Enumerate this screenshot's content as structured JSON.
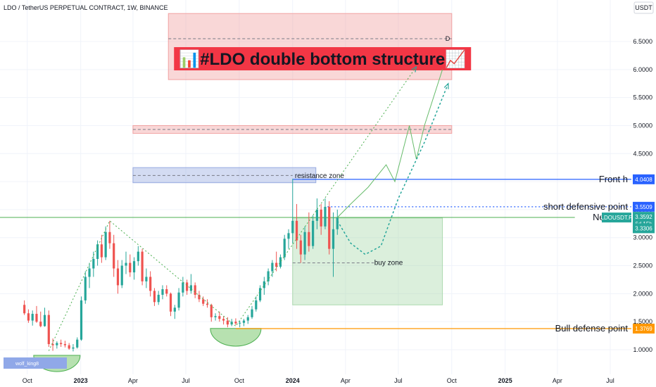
{
  "header": {
    "title": "LDO / TetherUS PERPETUAL CONTRACT, 1W, BINANCE",
    "currency": "USDT",
    "watermark": "wolf_king8"
  },
  "banner": {
    "text": "#LDO double bottom structure",
    "marker": "D",
    "bg_color": "#f23645"
  },
  "chart_data": {
    "type": "candlestick",
    "symbol": "LDOUSDT.P",
    "interval": "1W",
    "y_axis": {
      "ticks": [
        1.0,
        1.5,
        2.0,
        2.5,
        3.0,
        3.5,
        4.0,
        4.5,
        5.0,
        5.5,
        6.0,
        6.5
      ],
      "labels": [
        "1.0000",
        "1.5000",
        "2.0000",
        "2.5000",
        "3.0000",
        "3.5000",
        "4.0000",
        "4.5000",
        "5.0000",
        "5.5000",
        "6.0000",
        "6.5000"
      ],
      "scale": "linear"
    },
    "x_axis": {
      "labels": [
        "Oct",
        "2023",
        "Apr",
        "Jul",
        "Oct",
        "2024",
        "Apr",
        "Jul",
        "Oct",
        "2025",
        "Apr",
        "Jul"
      ],
      "range": [
        "2022-09-01",
        "2025-08-01"
      ]
    },
    "candles": [
      {
        "d": "2022-09-26",
        "o": 1.8,
        "h": 1.88,
        "l": 1.62,
        "c": 1.65
      },
      {
        "d": "2022-10-03",
        "o": 1.65,
        "h": 1.72,
        "l": 1.48,
        "c": 1.52
      },
      {
        "d": "2022-10-10",
        "o": 1.52,
        "h": 1.7,
        "l": 1.43,
        "c": 1.64
      },
      {
        "d": "2022-10-17",
        "o": 1.64,
        "h": 1.78,
        "l": 1.48,
        "c": 1.5
      },
      {
        "d": "2022-10-24",
        "o": 1.5,
        "h": 1.68,
        "l": 1.4,
        "c": 1.42
      },
      {
        "d": "2022-10-31",
        "o": 1.42,
        "h": 1.75,
        "l": 1.41,
        "c": 1.62
      },
      {
        "d": "2022-11-07",
        "o": 1.62,
        "h": 1.7,
        "l": 1.05,
        "c": 1.1
      },
      {
        "d": "2022-11-14",
        "o": 1.1,
        "h": 1.2,
        "l": 0.98,
        "c": 1.08
      },
      {
        "d": "2022-11-21",
        "o": 1.08,
        "h": 1.15,
        "l": 1.02,
        "c": 1.12
      },
      {
        "d": "2022-11-28",
        "o": 1.12,
        "h": 1.18,
        "l": 1.05,
        "c": 1.1
      },
      {
        "d": "2022-12-05",
        "o": 1.1,
        "h": 1.16,
        "l": 1.04,
        "c": 1.08
      },
      {
        "d": "2022-12-12",
        "o": 1.08,
        "h": 1.12,
        "l": 1.0,
        "c": 1.02
      },
      {
        "d": "2022-12-19",
        "o": 1.02,
        "h": 1.1,
        "l": 0.97,
        "c": 1.04
      },
      {
        "d": "2022-12-26",
        "o": 1.04,
        "h": 1.22,
        "l": 1.02,
        "c": 1.18
      },
      {
        "d": "2023-01-02",
        "o": 1.18,
        "h": 1.95,
        "l": 1.16,
        "c": 1.88
      },
      {
        "d": "2023-01-09",
        "o": 1.88,
        "h": 2.4,
        "l": 1.82,
        "c": 2.3
      },
      {
        "d": "2023-01-16",
        "o": 2.3,
        "h": 2.55,
        "l": 2.1,
        "c": 2.45
      },
      {
        "d": "2023-01-23",
        "o": 2.45,
        "h": 2.75,
        "l": 2.3,
        "c": 2.62
      },
      {
        "d": "2023-01-30",
        "o": 2.62,
        "h": 2.95,
        "l": 2.5,
        "c": 2.88
      },
      {
        "d": "2023-02-06",
        "o": 2.88,
        "h": 3.05,
        "l": 2.55,
        "c": 2.65
      },
      {
        "d": "2023-02-13",
        "o": 2.65,
        "h": 3.2,
        "l": 2.6,
        "c": 3.1
      },
      {
        "d": "2023-02-20",
        "o": 3.1,
        "h": 3.3,
        "l": 2.8,
        "c": 2.9
      },
      {
        "d": "2023-02-27",
        "o": 2.9,
        "h": 3.05,
        "l": 2.3,
        "c": 2.45
      },
      {
        "d": "2023-03-06",
        "o": 2.45,
        "h": 2.6,
        "l": 2.0,
        "c": 2.15
      },
      {
        "d": "2023-03-13",
        "o": 2.15,
        "h": 2.6,
        "l": 2.1,
        "c": 2.5
      },
      {
        "d": "2023-03-20",
        "o": 2.5,
        "h": 2.75,
        "l": 2.35,
        "c": 2.55
      },
      {
        "d": "2023-03-27",
        "o": 2.55,
        "h": 2.7,
        "l": 2.3,
        "c": 2.38
      },
      {
        "d": "2023-04-03",
        "o": 2.38,
        "h": 2.65,
        "l": 2.25,
        "c": 2.58
      },
      {
        "d": "2023-04-10",
        "o": 2.58,
        "h": 2.85,
        "l": 2.5,
        "c": 2.75
      },
      {
        "d": "2023-04-17",
        "o": 2.75,
        "h": 2.8,
        "l": 2.15,
        "c": 2.22
      },
      {
        "d": "2023-04-24",
        "o": 2.22,
        "h": 2.45,
        "l": 2.1,
        "c": 2.3
      },
      {
        "d": "2023-05-01",
        "o": 2.3,
        "h": 2.4,
        "l": 1.95,
        "c": 2.05
      },
      {
        "d": "2023-05-08",
        "o": 2.05,
        "h": 2.1,
        "l": 1.78,
        "c": 1.85
      },
      {
        "d": "2023-05-15",
        "o": 1.85,
        "h": 2.05,
        "l": 1.8,
        "c": 1.98
      },
      {
        "d": "2023-05-22",
        "o": 1.98,
        "h": 2.15,
        "l": 1.9,
        "c": 2.08
      },
      {
        "d": "2023-05-29",
        "o": 2.08,
        "h": 2.15,
        "l": 1.95,
        "c": 2.0
      },
      {
        "d": "2023-06-05",
        "o": 2.0,
        "h": 2.02,
        "l": 1.6,
        "c": 1.68
      },
      {
        "d": "2023-06-12",
        "o": 1.68,
        "h": 1.8,
        "l": 1.55,
        "c": 1.75
      },
      {
        "d": "2023-06-19",
        "o": 1.75,
        "h": 2.1,
        "l": 1.7,
        "c": 2.02
      },
      {
        "d": "2023-06-26",
        "o": 2.02,
        "h": 2.3,
        "l": 1.95,
        "c": 2.2
      },
      {
        "d": "2023-07-03",
        "o": 2.2,
        "h": 2.25,
        "l": 1.98,
        "c": 2.05
      },
      {
        "d": "2023-07-10",
        "o": 2.05,
        "h": 2.35,
        "l": 2.0,
        "c": 2.15
      },
      {
        "d": "2023-07-17",
        "o": 2.15,
        "h": 2.2,
        "l": 1.92,
        "c": 1.98
      },
      {
        "d": "2023-07-24",
        "o": 1.98,
        "h": 2.05,
        "l": 1.85,
        "c": 1.9
      },
      {
        "d": "2023-07-31",
        "o": 1.9,
        "h": 1.95,
        "l": 1.78,
        "c": 1.82
      },
      {
        "d": "2023-08-07",
        "o": 1.82,
        "h": 1.9,
        "l": 1.75,
        "c": 1.8
      },
      {
        "d": "2023-08-14",
        "o": 1.8,
        "h": 1.82,
        "l": 1.5,
        "c": 1.58
      },
      {
        "d": "2023-08-21",
        "o": 1.58,
        "h": 1.65,
        "l": 1.52,
        "c": 1.6
      },
      {
        "d": "2023-08-28",
        "o": 1.6,
        "h": 1.68,
        "l": 1.5,
        "c": 1.55
      },
      {
        "d": "2023-09-04",
        "o": 1.55,
        "h": 1.6,
        "l": 1.45,
        "c": 1.52
      },
      {
        "d": "2023-09-11",
        "o": 1.52,
        "h": 1.58,
        "l": 1.4,
        "c": 1.45
      },
      {
        "d": "2023-09-18",
        "o": 1.45,
        "h": 1.55,
        "l": 1.42,
        "c": 1.5
      },
      {
        "d": "2023-09-25",
        "o": 1.5,
        "h": 1.56,
        "l": 1.44,
        "c": 1.47
      },
      {
        "d": "2023-10-02",
        "o": 1.47,
        "h": 1.52,
        "l": 1.4,
        "c": 1.48
      },
      {
        "d": "2023-10-09",
        "o": 1.48,
        "h": 1.55,
        "l": 1.42,
        "c": 1.52
      },
      {
        "d": "2023-10-16",
        "o": 1.52,
        "h": 1.62,
        "l": 1.46,
        "c": 1.58
      },
      {
        "d": "2023-10-23",
        "o": 1.58,
        "h": 1.78,
        "l": 1.55,
        "c": 1.72
      },
      {
        "d": "2023-10-30",
        "o": 1.72,
        "h": 1.95,
        "l": 1.68,
        "c": 1.88
      },
      {
        "d": "2023-11-06",
        "o": 1.88,
        "h": 2.15,
        "l": 1.85,
        "c": 2.1
      },
      {
        "d": "2023-11-13",
        "o": 2.1,
        "h": 2.3,
        "l": 1.98,
        "c": 2.22
      },
      {
        "d": "2023-11-20",
        "o": 2.22,
        "h": 2.45,
        "l": 2.15,
        "c": 2.4
      },
      {
        "d": "2023-11-27",
        "o": 2.4,
        "h": 2.6,
        "l": 2.3,
        "c": 2.55
      },
      {
        "d": "2023-12-04",
        "o": 2.55,
        "h": 2.75,
        "l": 2.4,
        "c": 2.48
      },
      {
        "d": "2023-12-11",
        "o": 2.48,
        "h": 2.7,
        "l": 2.45,
        "c": 2.65
      },
      {
        "d": "2023-12-18",
        "o": 2.65,
        "h": 3.05,
        "l": 2.6,
        "c": 2.98
      },
      {
        "d": "2023-12-25",
        "o": 2.98,
        "h": 3.15,
        "l": 2.8,
        "c": 3.08
      },
      {
        "d": "2024-01-01",
        "o": 3.08,
        "h": 4.05,
        "l": 2.9,
        "c": 3.3
      },
      {
        "d": "2024-01-08",
        "o": 3.3,
        "h": 3.6,
        "l": 2.8,
        "c": 2.95
      },
      {
        "d": "2024-01-15",
        "o": 2.95,
        "h": 3.05,
        "l": 2.55,
        "c": 2.7
      },
      {
        "d": "2024-01-22",
        "o": 2.7,
        "h": 3.2,
        "l": 2.6,
        "c": 3.1
      },
      {
        "d": "2024-01-29",
        "o": 3.1,
        "h": 3.45,
        "l": 2.75,
        "c": 2.85
      },
      {
        "d": "2024-02-05",
        "o": 2.85,
        "h": 3.4,
        "l": 2.8,
        "c": 3.3
      },
      {
        "d": "2024-02-12",
        "o": 3.3,
        "h": 3.7,
        "l": 3.15,
        "c": 3.5
      },
      {
        "d": "2024-02-19",
        "o": 3.5,
        "h": 3.6,
        "l": 3.05,
        "c": 3.2
      },
      {
        "d": "2024-02-26",
        "o": 3.2,
        "h": 3.7,
        "l": 3.15,
        "c": 3.55
      },
      {
        "d": "2024-03-04",
        "o": 3.55,
        "h": 3.65,
        "l": 2.7,
        "c": 2.8
      },
      {
        "d": "2024-03-11",
        "o": 2.8,
        "h": 3.45,
        "l": 2.3,
        "c": 3.15
      },
      {
        "d": "2024-03-18",
        "o": 3.15,
        "h": 3.5,
        "l": 3.05,
        "c": 3.36
      }
    ],
    "horizontal_lines": [
      {
        "label": "Front h",
        "value": 4.0408,
        "badge": "4.0408",
        "color": "#2962ff",
        "style": "solid"
      },
      {
        "label": "short defensive point",
        "value": 3.5509,
        "badge": "3.5509",
        "color": "#2962ff",
        "style": "dotted"
      },
      {
        "label": "Neckline",
        "value": 3.36,
        "badge": "",
        "color": "#4caf50",
        "style": "solid"
      },
      {
        "label": "Bull defense point",
        "value": 1.3769,
        "badge": "1.3769",
        "color": "#ff9800",
        "style": "solid"
      }
    ],
    "price_badges": [
      {
        "text": "LDOUSDT.P",
        "value": 3.3592,
        "color": "#26a69a"
      },
      {
        "text": "3.3592",
        "value": 3.3592,
        "color": "#26a69a"
      },
      {
        "text": "6d 15h",
        "value": 3.3592,
        "color": "#26a69a"
      },
      {
        "text": "3.3306",
        "value": 3.3306,
        "color": "#26a69a"
      }
    ],
    "zones": [
      {
        "label": "",
        "ymin": 5.82,
        "ymax": 7.0,
        "from": "2023-06-01",
        "to": "2024-10-01",
        "color": "#ef9a9a"
      },
      {
        "label": "",
        "ymin": 4.86,
        "ymax": 5.0,
        "from": "2023-04-01",
        "to": "2024-10-01",
        "color": "#ef9a9a"
      },
      {
        "label": "resistance zone",
        "ymin": 3.98,
        "ymax": 4.25,
        "from": "2023-04-01",
        "to": "2024-02-10",
        "color": "#90a4de"
      },
      {
        "label": "buy zone",
        "ymin": 1.8,
        "ymax": 3.35,
        "from": "2024-01-01",
        "to": "2024-09-15",
        "color": "#a5d6a7"
      }
    ],
    "lines": {
      "neckline": {
        "from": {
          "d": "2023-02-20",
          "v": 3.36
        },
        "to": {
          "d": "2025-05-01",
          "v": 3.36
        }
      },
      "double_bottom_dotted": [
        {
          "d": "2022-11-07",
          "v": 0.98
        },
        {
          "d": "2023-02-20",
          "v": 3.3
        },
        {
          "d": "2023-09-25",
          "v": 1.42
        },
        {
          "d": "2024-08-01",
          "v": 6.05
        }
      ],
      "projection_1": [
        {
          "d": "2024-03-18",
          "v": 3.36
        },
        {
          "d": "2024-04-10",
          "v": 3.6
        },
        {
          "d": "2024-05-10",
          "v": 3.9
        },
        {
          "d": "2024-06-10",
          "v": 4.3
        },
        {
          "d": "2024-06-25",
          "v": 4.0
        },
        {
          "d": "2024-07-20",
          "v": 5.0
        },
        {
          "d": "2024-08-01",
          "v": 4.4
        },
        {
          "d": "2024-08-15",
          "v": 5.0
        },
        {
          "d": "2024-09-15",
          "v": 6.0
        }
      ],
      "projection_2": [
        {
          "d": "2024-03-18",
          "v": 3.3
        },
        {
          "d": "2024-04-10",
          "v": 2.9
        },
        {
          "d": "2024-05-05",
          "v": 2.7
        },
        {
          "d": "2024-06-01",
          "v": 2.85
        },
        {
          "d": "2024-07-01",
          "v": 3.7
        },
        {
          "d": "2024-08-15",
          "v": 4.7
        },
        {
          "d": "2024-09-25",
          "v": 5.75
        }
      ]
    },
    "bottom_arcs": [
      {
        "center": "2022-11-21",
        "value": 0.88
      },
      {
        "center": "2023-09-25",
        "value": 1.37
      }
    ]
  },
  "colors": {
    "up": "#26a69a",
    "down": "#ef5350",
    "grid": "#f0f3fa",
    "arc_fill": "#b7e1b0",
    "arc_stroke": "#4caf50"
  }
}
